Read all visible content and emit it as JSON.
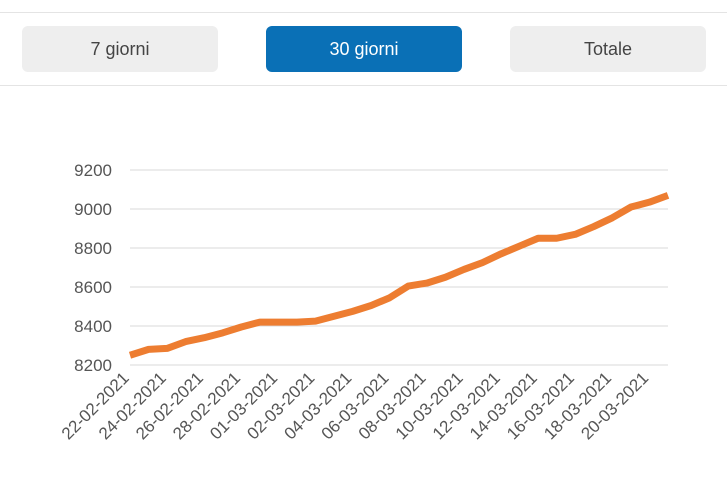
{
  "tabs": [
    {
      "label": "7 giorni",
      "active": false
    },
    {
      "label": "30 giorni",
      "active": true
    },
    {
      "label": "Totale",
      "active": false
    }
  ],
  "chart_data": {
    "type": "line",
    "categories": [
      "22-02-2021",
      null,
      "24-02-2021",
      null,
      "26-02-2021",
      null,
      "28-02-2021",
      null,
      "01-03-2021",
      null,
      "02-03-2021",
      null,
      "04-03-2021",
      null,
      "06-03-2021",
      null,
      "08-03-2021",
      null,
      "10-03-2021",
      null,
      "12-03-2021",
      null,
      "14-03-2021",
      null,
      "16-03-2021",
      null,
      "18-03-2021",
      null,
      "20-03-2021",
      null
    ],
    "series": [
      {
        "color": "#ed7d31",
        "values": [
          8250,
          8280,
          8285,
          8320,
          8340,
          8365,
          8395,
          8420,
          8420,
          8420,
          8425,
          8450,
          8475,
          8505,
          8545,
          8605,
          8620,
          8650,
          8690,
          8725,
          8770,
          8810,
          8850,
          8850,
          8870,
          8910,
          8955,
          9010,
          9035,
          9070
        ]
      }
    ],
    "ylim": [
      8200,
      9200
    ],
    "yticks": [
      8200,
      8400,
      8600,
      8800,
      9000,
      9200
    ],
    "grid": true
  }
}
